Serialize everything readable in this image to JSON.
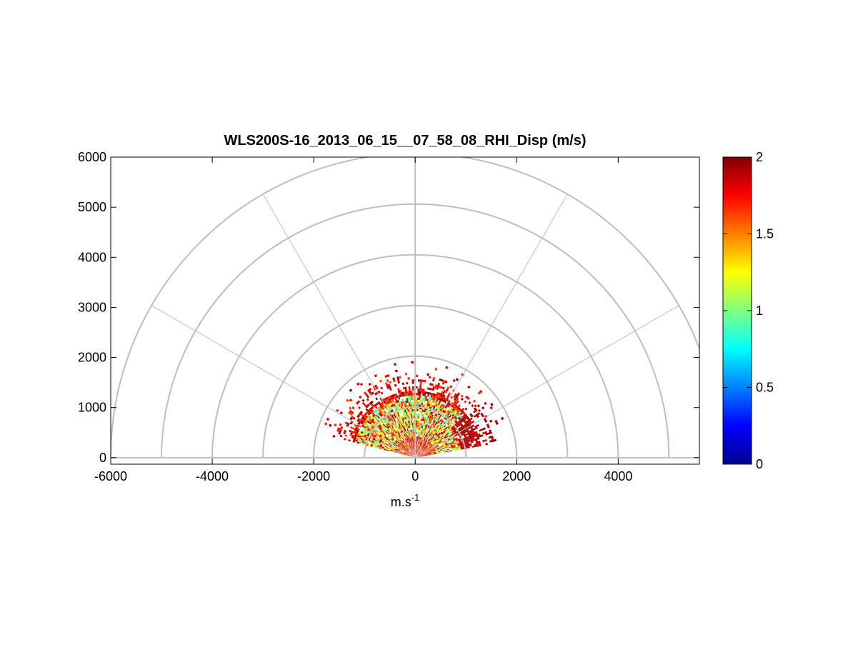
{
  "chart_data": {
    "type": "heatmap",
    "subtype": "polar RHI scan",
    "title": "WLS200S-16_2013_06_15__07_58_08_RHI_Disp (m/s)",
    "xlabel": "m.s",
    "xlabel_superscript": "-1",
    "ylabel": "",
    "xlim": [
      -6000,
      5600
    ],
    "ylim": [
      -130,
      6000
    ],
    "x_ticks": [
      "-6000",
      "-4000",
      "-2000",
      "0",
      "2000",
      "4000"
    ],
    "y_ticks": [
      "0",
      "1000",
      "2000",
      "3000",
      "4000",
      "5000",
      "6000"
    ],
    "polar_grid": {
      "ring_radii": [
        1000,
        2000,
        3000,
        4000,
        5000,
        6000
      ],
      "spoke_angles_deg": [
        0,
        30,
        60,
        90,
        120,
        150,
        180
      ],
      "color": "#bebebe"
    },
    "colorbar": {
      "colormap": "jet",
      "range": [
        0,
        2
      ],
      "ticks": [
        "0",
        "0.5",
        "1",
        "1.5",
        "2"
      ]
    },
    "data_extent": {
      "elevation_deg": [
        10,
        165
      ],
      "max_range": 1900
    }
  }
}
